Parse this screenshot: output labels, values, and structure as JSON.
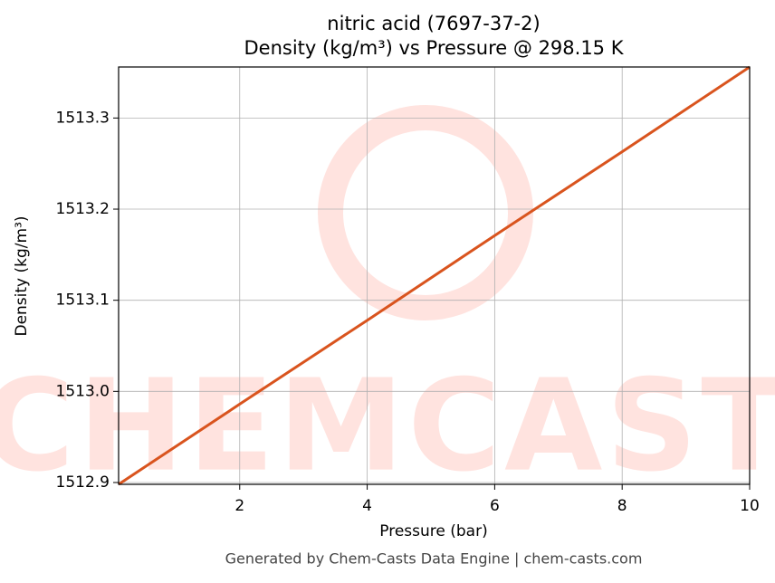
{
  "chart_data": {
    "type": "line",
    "title": "nitric acid (7697-37-2)",
    "subtitle": "Density (kg/m³) vs Pressure @ 298.15 K",
    "xlabel": "Pressure (bar)",
    "ylabel": "Density (kg/m³)",
    "watermark": "CHEMCASTS",
    "footer": "Generated by Chem-Casts Data Engine | chem-casts.com",
    "x": [
      0.1,
      2,
      4,
      6,
      8,
      10
    ],
    "series": [
      {
        "name": "Density",
        "color": "#d9541e",
        "values": [
          1512.898,
          1512.986,
          1513.078,
          1513.171,
          1513.263,
          1513.356
        ]
      }
    ],
    "xlim": [
      0.1,
      10
    ],
    "xticks": [
      2,
      4,
      6,
      8,
      10
    ],
    "ylim": [
      1512.898,
      1513.356
    ],
    "yticks": [
      1512.9,
      {
        "value": 1513.0,
        "label": "1513.0"
      },
      1513.1,
      1513.2,
      1513.3
    ],
    "grid": true
  }
}
